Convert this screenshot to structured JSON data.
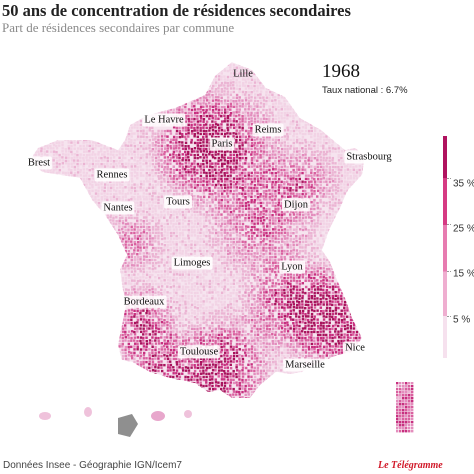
{
  "title": "50 ans de concentration de résidences secondaires",
  "subtitle": "Part de résidences secondaires par commune",
  "year": "1968",
  "national_rate": "Taux national : 6.7%",
  "cities": {
    "lille": "Lille",
    "le_havre": "Le Havre",
    "reims": "Reims",
    "paris": "Paris",
    "strasbourg": "Strasbourg",
    "brest": "Brest",
    "rennes": "Rennes",
    "nantes": "Nantes",
    "tours": "Tours",
    "dijon": "Dijon",
    "limoges": "Limoges",
    "lyon": "Lyon",
    "bordeaux": "Bordeaux",
    "toulouse": "Toulouse",
    "marseille": "Marseille",
    "nice": "Nice"
  },
  "legend": {
    "labels": [
      "35 %",
      "25 %",
      "15 %",
      "5 %"
    ],
    "colors": [
      "#f6e1ee",
      "#efaed0",
      "#e77bb0",
      "#d63a83",
      "#b0125f"
    ]
  },
  "map_colors": {
    "base": "#f4dcea",
    "dots": [
      "#f2d3e5",
      "#ebb4d3",
      "#e38dbd",
      "#d9609f",
      "#c72f7f",
      "#a8125c"
    ],
    "water_dots": "#ffffff",
    "grey_dots": "#8f8f8f"
  },
  "source": "Données Insee - Géographie IGN/Icem7",
  "brand": "Le Télégramme"
}
